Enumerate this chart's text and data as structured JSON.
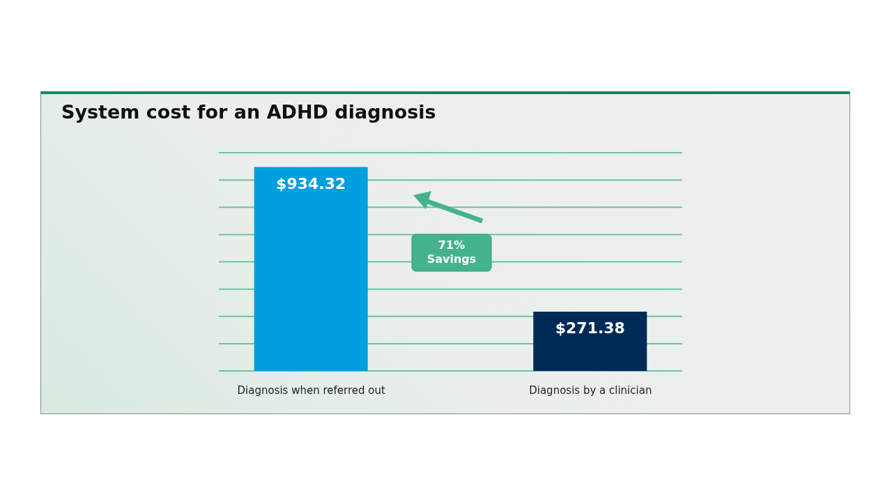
{
  "chart_data": {
    "type": "bar",
    "title": "System cost for an ADHD diagnosis",
    "categories": [
      "Diagnosis when referred out",
      "Diagnosis by a clinician"
    ],
    "values": [
      934.32,
      271.38
    ],
    "colors": [
      "#009fde",
      "#002b56"
    ],
    "value_labels": [
      "$934.32",
      "$271.38"
    ],
    "annotations": [
      "71% Savings"
    ],
    "ylim": [
      0,
      1000
    ],
    "yticks": [
      {
        "value": 0,
        "label": null
      },
      {
        "value": 125,
        "label": null
      },
      {
        "value": 250,
        "label": null
      },
      {
        "value": 375,
        "label": null
      },
      {
        "value": 500,
        "label": null
      },
      {
        "value": 625,
        "label": null
      },
      {
        "value": 750,
        "label": null
      },
      {
        "value": 875,
        "label": null
      },
      {
        "value": 1000,
        "label": null
      }
    ],
    "grid": "y",
    "tick_labels": "x"
  }
}
